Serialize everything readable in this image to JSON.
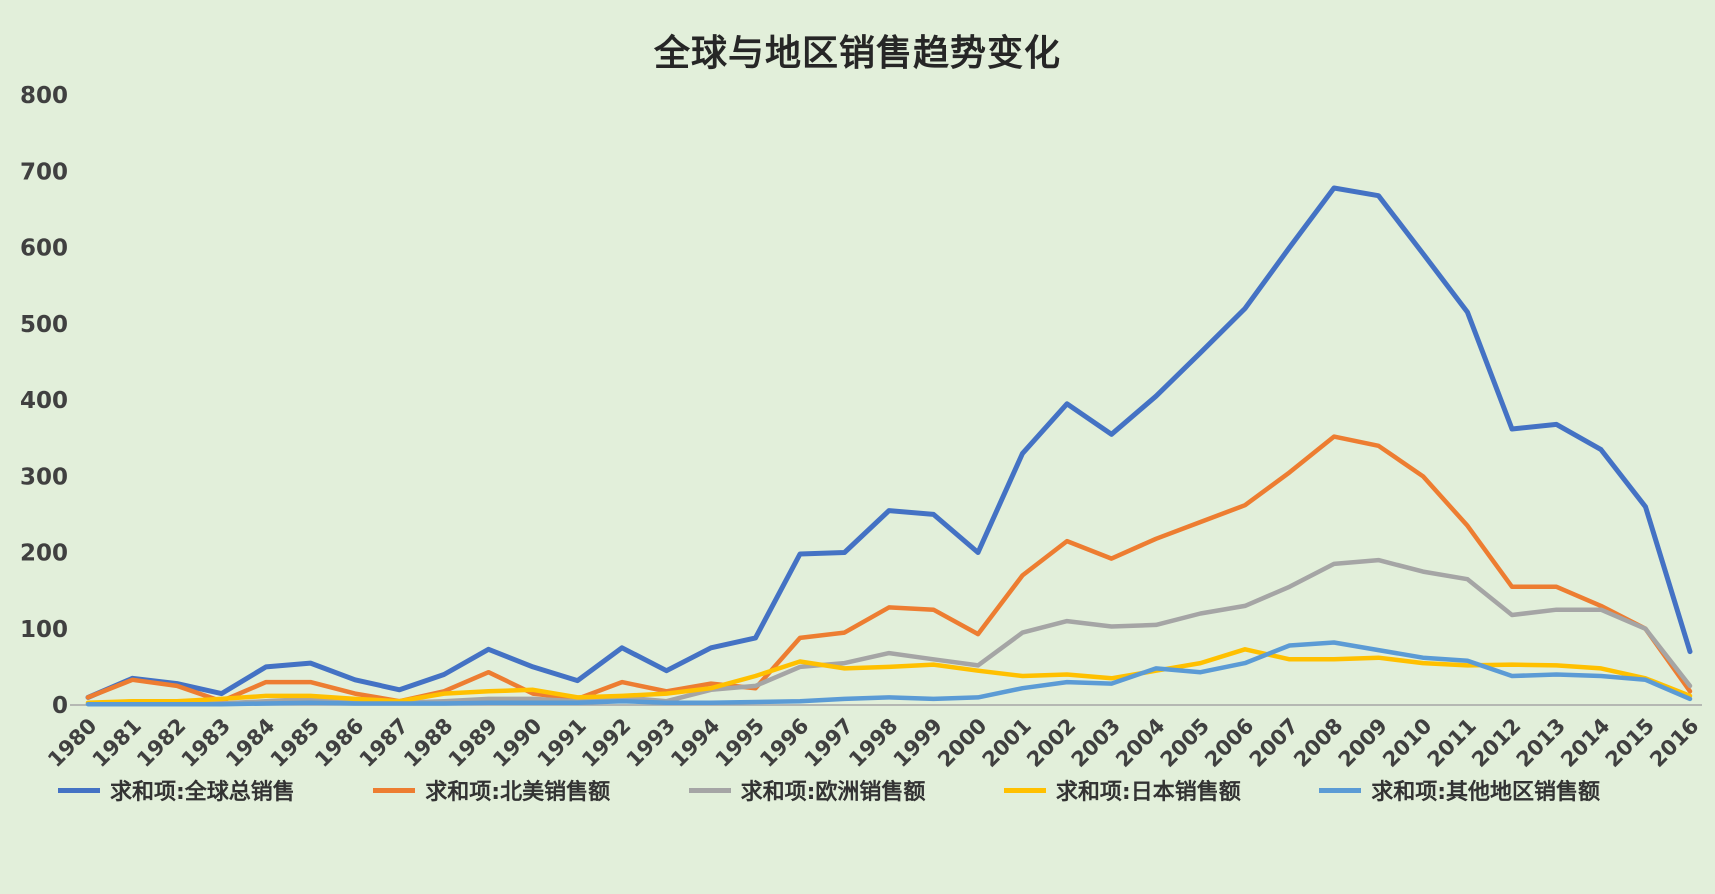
{
  "chart_data": {
    "type": "line",
    "title": "全球与地区销售趋势变化",
    "xlabel": "",
    "ylabel": "",
    "ylim": [
      0,
      800
    ],
    "ytick_step": 100,
    "grid": false,
    "legend_position": "bottom",
    "background_color": "#E2EFDA",
    "axis_text_color": "#404040",
    "axis_line_color": "#A6A6A6",
    "title_color": "#262626",
    "categories": [
      "1980",
      "1981",
      "1982",
      "1983",
      "1984",
      "1985",
      "1986",
      "1987",
      "1988",
      "1989",
      "1990",
      "1991",
      "1992",
      "1993",
      "1994",
      "1995",
      "1996",
      "1997",
      "1998",
      "1999",
      "2000",
      "2001",
      "2002",
      "2003",
      "2004",
      "2005",
      "2006",
      "2007",
      "2008",
      "2009",
      "2010",
      "2011",
      "2012",
      "2013",
      "2014",
      "2015",
      "2016"
    ],
    "series": [
      {
        "name": "求和项:全球总销售",
        "color": "#4472C4",
        "values": [
          10,
          35,
          28,
          15,
          50,
          55,
          33,
          20,
          40,
          73,
          50,
          32,
          75,
          45,
          75,
          88,
          198,
          200,
          255,
          250,
          200,
          330,
          395,
          355,
          405,
          462,
          520,
          600,
          678,
          668,
          592,
          515,
          362,
          368,
          335,
          260,
          70
        ]
      },
      {
        "name": "求和项:北美销售额",
        "color": "#ED7D31",
        "values": [
          10,
          33,
          25,
          5,
          30,
          30,
          15,
          5,
          18,
          43,
          15,
          8,
          30,
          18,
          28,
          22,
          88,
          95,
          128,
          125,
          93,
          170,
          215,
          192,
          218,
          240,
          262,
          305,
          352,
          340,
          300,
          235,
          155,
          155,
          130,
          100,
          18
        ]
      },
      {
        "name": "求和项:欧洲销售额",
        "color": "#A5A5A5",
        "values": [
          2,
          3,
          2,
          2,
          5,
          8,
          5,
          3,
          5,
          8,
          8,
          5,
          10,
          5,
          20,
          25,
          50,
          55,
          68,
          60,
          52,
          95,
          110,
          103,
          105,
          120,
          130,
          155,
          185,
          190,
          175,
          165,
          118,
          125,
          125,
          100,
          25
        ]
      },
      {
        "name": "求和项:日本销售额",
        "color": "#FFC000",
        "values": [
          3,
          5,
          5,
          8,
          12,
          12,
          8,
          5,
          15,
          18,
          20,
          10,
          12,
          15,
          22,
          38,
          57,
          48,
          50,
          53,
          45,
          38,
          40,
          35,
          45,
          55,
          73,
          60,
          60,
          62,
          55,
          52,
          53,
          52,
          48,
          35,
          12
        ]
      },
      {
        "name": "求和项:其他地区销售额",
        "color": "#5B9BD5",
        "values": [
          1,
          1,
          1,
          1,
          2,
          3,
          2,
          2,
          2,
          3,
          3,
          3,
          5,
          3,
          3,
          4,
          5,
          8,
          10,
          8,
          10,
          22,
          30,
          28,
          48,
          43,
          55,
          78,
          82,
          72,
          62,
          58,
          38,
          40,
          38,
          33,
          8
        ]
      }
    ]
  }
}
